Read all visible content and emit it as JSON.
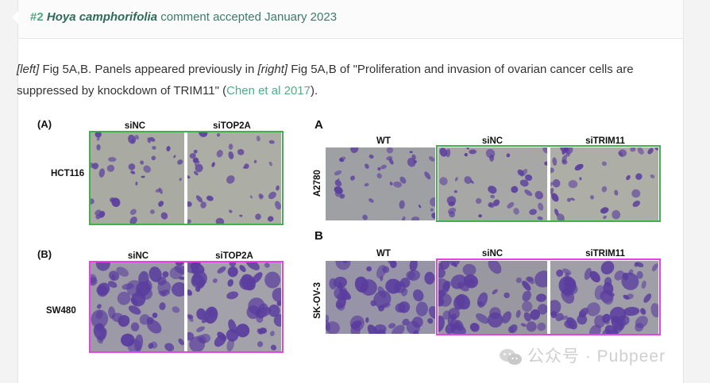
{
  "comment": {
    "number": "#2",
    "species": "Hoya camphorifolia",
    "status": "comment accepted January 2023"
  },
  "body": {
    "left_tag": "[left]",
    "left_ref": " Fig 5A,B. Panels appeared previously in ",
    "right_tag": "[right]",
    "right_ref": " Fig 5A,B of \"Proliferation and invasion of ovarian cancer cells are suppressed by knockdown of TRIM11\" (",
    "link_text": "Chen et al 2017",
    "closing": ")."
  },
  "left_figure": {
    "panel_a": {
      "letter": "(A)",
      "cols": [
        "siNC",
        "siTOP2A"
      ],
      "row": "HCT116"
    },
    "panel_b": {
      "letter": "(B)",
      "cols": [
        "siNC",
        "siTOP2A"
      ],
      "row": "SW480"
    }
  },
  "right_figure": {
    "panel_a": {
      "letter": "A",
      "cols": [
        "WT",
        "siNC",
        "siTRIM11"
      ],
      "row": "A2780"
    },
    "panel_b": {
      "letter": "B",
      "cols": [
        "WT",
        "siNC",
        "siTRIM11"
      ],
      "row": "SK-OV-3"
    }
  },
  "watermark": {
    "text": "公众号 · Pubpeer",
    "icon": "wechat-icon"
  },
  "colors": {
    "accent_green": "#52a786",
    "frame_green": "#3fb24b",
    "frame_magenta": "#e640e6",
    "stain_purple": "#5a3d9e"
  }
}
